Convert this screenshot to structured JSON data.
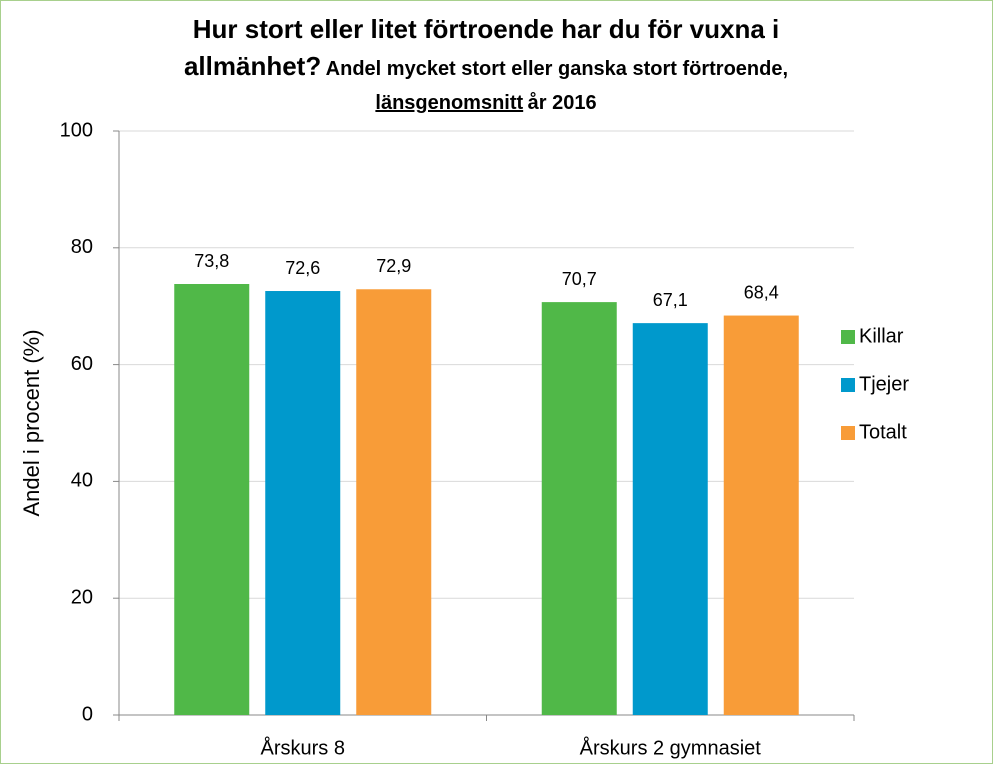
{
  "chart_data": {
    "type": "bar",
    "title": "Hur stort eller litet förtroende har du för vuxna i allmänhet?",
    "subtitle": [
      "Andel mycket stort eller ganska stort förtroende,",
      "länsgenomsnitt",
      "år 2016"
    ],
    "y_axis_label": "Andel i procent (%)",
    "categories": [
      "Årskurs 8",
      "Årskurs 2 gymnasiet"
    ],
    "series": [
      {
        "name": "Killar",
        "color": "#50b848",
        "values": [
          73.8,
          70.7
        ],
        "value_labels": [
          "73,8",
          "70,7"
        ]
      },
      {
        "name": "Tjejer",
        "color": "#0099cc",
        "values": [
          72.6,
          67.1
        ],
        "value_labels": [
          "72,6",
          "67,1"
        ]
      },
      {
        "name": "Totalt",
        "color": "#f89c38",
        "values": [
          72.9,
          68.4
        ],
        "value_labels": [
          "72,9",
          "68,4"
        ]
      }
    ],
    "ylim": [
      0,
      100
    ],
    "yticks": [
      0,
      20,
      40,
      60,
      80,
      100
    ],
    "grid": true,
    "legend": "right"
  }
}
